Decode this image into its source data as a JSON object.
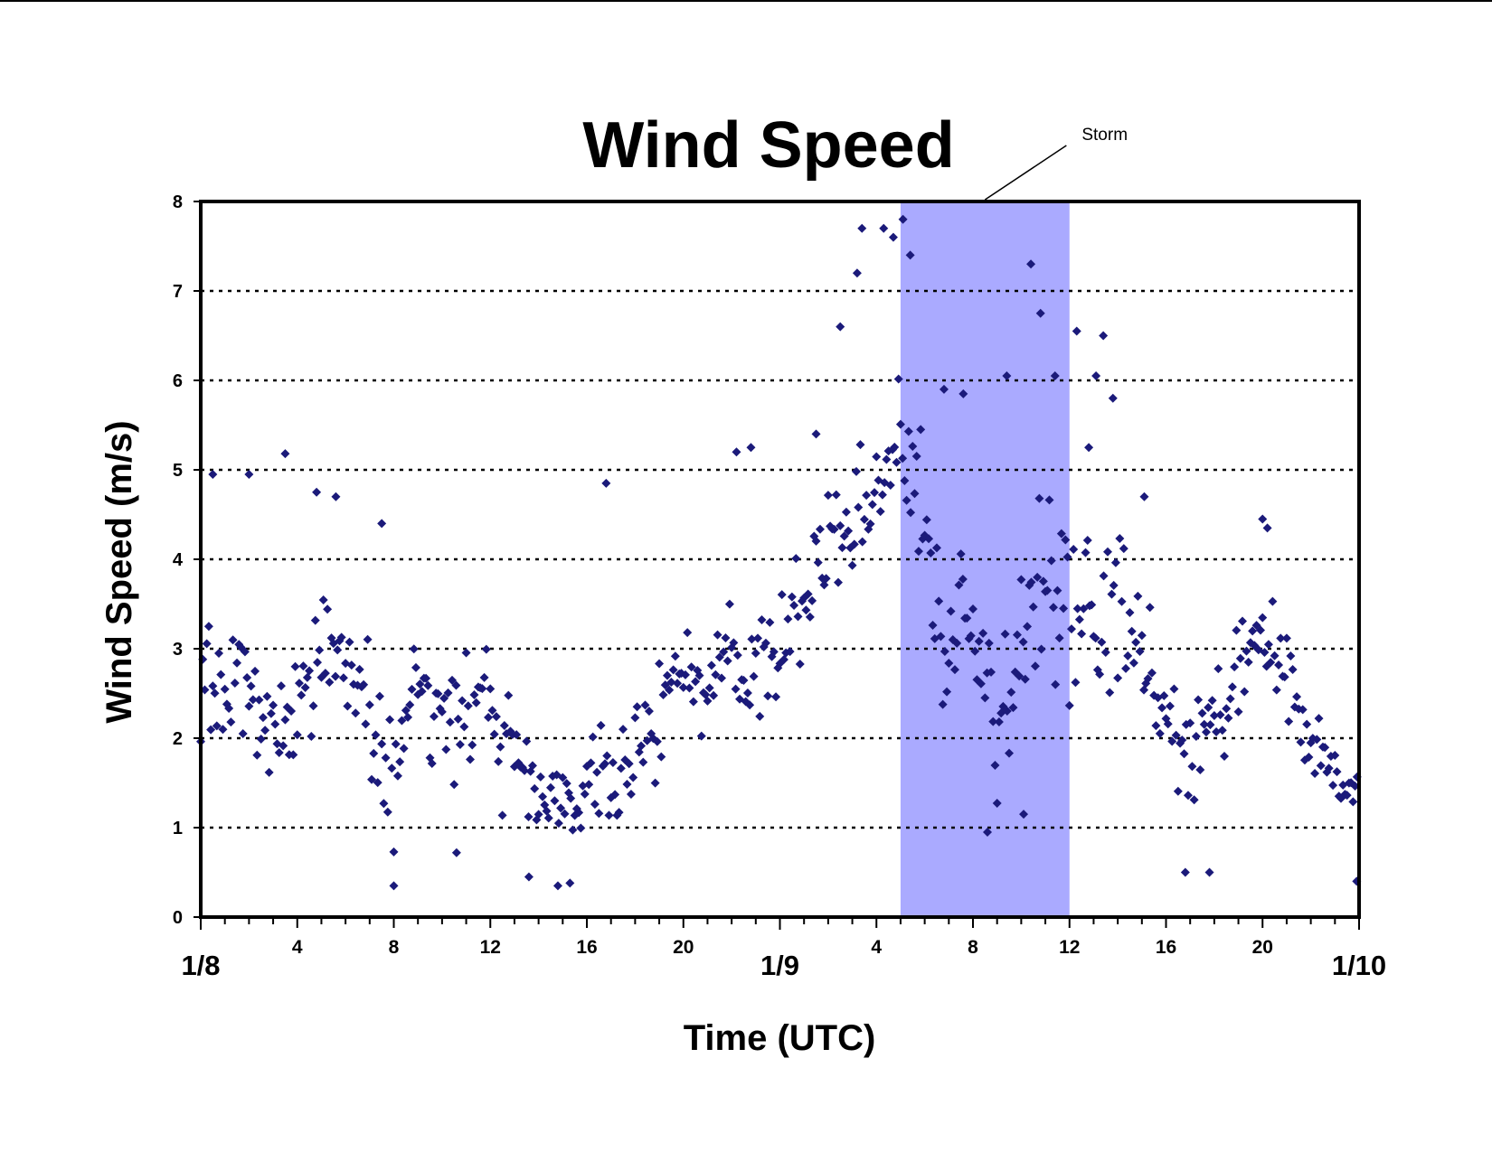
{
  "chart_data": {
    "type": "scatter",
    "title": "Wind Speed",
    "xlabel": "Time (UTC)",
    "ylabel": "Wind Speed (m/s)",
    "ylim": [
      0,
      8
    ],
    "yticks": [
      0,
      1,
      2,
      3,
      4,
      5,
      6,
      7,
      8
    ],
    "xlim_hours": [
      0,
      48
    ],
    "x_major_ticks": [
      {
        "hour": 0,
        "label": "1/8"
      },
      {
        "hour": 24,
        "label": "1/9"
      },
      {
        "hour": 48,
        "label": "1/10"
      }
    ],
    "x_minor_ticks": [
      {
        "hour": 4,
        "label": "4"
      },
      {
        "hour": 8,
        "label": "8"
      },
      {
        "hour": 12,
        "label": "12"
      },
      {
        "hour": 16,
        "label": "16"
      },
      {
        "hour": 20,
        "label": "20"
      },
      {
        "hour": 28,
        "label": "4"
      },
      {
        "hour": 32,
        "label": "8"
      },
      {
        "hour": 36,
        "label": "12"
      },
      {
        "hour": 40,
        "label": "16"
      },
      {
        "hour": 44,
        "label": "20"
      }
    ],
    "grid": "horizontal dotted",
    "marker_color": "#1b1a7a",
    "highlight": {
      "label": "Storm",
      "x_start_hour": 29,
      "x_end_hour": 36,
      "color": "#aaaaff"
    },
    "trend": [
      [
        0,
        2.5
      ],
      [
        2,
        2.4
      ],
      [
        4,
        2.4
      ],
      [
        5,
        2.9
      ],
      [
        6,
        2.8
      ],
      [
        7,
        2.2
      ],
      [
        8,
        1.6
      ],
      [
        9,
        2.6
      ],
      [
        10,
        2.4
      ],
      [
        11,
        2.2
      ],
      [
        12,
        2.5
      ],
      [
        13,
        1.7
      ],
      [
        14,
        1.3
      ],
      [
        15,
        1.2
      ],
      [
        16,
        1.4
      ],
      [
        17,
        1.5
      ],
      [
        18,
        1.9
      ],
      [
        19,
        2.2
      ],
      [
        20,
        2.7
      ],
      [
        21,
        2.6
      ],
      [
        22,
        3.0
      ],
      [
        23,
        2.7
      ],
      [
        24,
        3.1
      ],
      [
        25,
        3.6
      ],
      [
        26,
        4.2
      ],
      [
        27,
        4.5
      ],
      [
        28,
        4.9
      ],
      [
        29,
        5.5
      ],
      [
        29.5,
        5.0
      ],
      [
        30,
        4.0
      ],
      [
        31,
        3.0
      ],
      [
        32,
        3.4
      ],
      [
        33,
        2.0
      ],
      [
        34,
        3.0
      ],
      [
        35,
        3.7
      ],
      [
        36,
        3.4
      ],
      [
        37,
        3.2
      ],
      [
        38,
        3.5
      ],
      [
        39,
        2.9
      ],
      [
        40,
        2.2
      ],
      [
        41,
        1.8
      ],
      [
        42,
        2.0
      ],
      [
        43,
        2.6
      ],
      [
        44,
        3.2
      ],
      [
        45,
        2.6
      ],
      [
        46,
        1.9
      ],
      [
        47,
        1.6
      ],
      [
        48,
        1.3
      ]
    ],
    "spread": [
      [
        0,
        0.6
      ],
      [
        8,
        0.7
      ],
      [
        12,
        0.6
      ],
      [
        16,
        0.5
      ],
      [
        22,
        0.6
      ],
      [
        26,
        0.6
      ],
      [
        29,
        0.8
      ],
      [
        31,
        0.9
      ],
      [
        33,
        0.7
      ],
      [
        35,
        1.0
      ],
      [
        37,
        0.8
      ],
      [
        40,
        0.5
      ],
      [
        44,
        0.5
      ],
      [
        47,
        0.25
      ],
      [
        48,
        0.3
      ]
    ],
    "outliers": [
      [
        0.5,
        4.95
      ],
      [
        2,
        4.95
      ],
      [
        3.5,
        5.18
      ],
      [
        4.8,
        4.75
      ],
      [
        5.6,
        4.7
      ],
      [
        7.5,
        4.4
      ],
      [
        16.8,
        4.85
      ],
      [
        22.2,
        5.2
      ],
      [
        22.8,
        5.25
      ],
      [
        25.5,
        5.4
      ],
      [
        26.5,
        6.6
      ],
      [
        27.2,
        7.2
      ],
      [
        27.4,
        7.7
      ],
      [
        28.3,
        7.7
      ],
      [
        28.7,
        7.6
      ],
      [
        29.1,
        7.8
      ],
      [
        29.4,
        7.4
      ],
      [
        30.8,
        5.9
      ],
      [
        31.6,
        5.85
      ],
      [
        33.4,
        6.05
      ],
      [
        34.4,
        7.3
      ],
      [
        34.8,
        6.75
      ],
      [
        35.4,
        6.05
      ],
      [
        36.3,
        6.55
      ],
      [
        37.4,
        6.5
      ],
      [
        37.1,
        6.05
      ],
      [
        37.8,
        5.8
      ],
      [
        36.8,
        5.25
      ],
      [
        39.1,
        4.7
      ],
      [
        40.8,
        0.5
      ],
      [
        41.8,
        0.5
      ],
      [
        44,
        4.45
      ],
      [
        44.2,
        4.35
      ],
      [
        47.9,
        0.4
      ],
      [
        8,
        0.35
      ],
      [
        14.8,
        0.35
      ],
      [
        15.3,
        0.38
      ],
      [
        13.6,
        0.45
      ],
      [
        32.6,
        0.95
      ],
      [
        34.1,
        1.15
      ],
      [
        10.6,
        0.72
      ]
    ]
  }
}
